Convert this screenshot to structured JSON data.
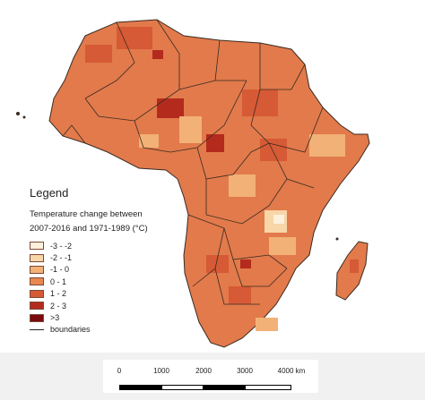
{
  "legend": {
    "title": "Legend",
    "subtitle_line1": "Temperature change between",
    "subtitle_line2": "2007-2016 and 1971-1989 (°C)",
    "classes": [
      {
        "label": "-3 - -2",
        "color": "#fdf0dc"
      },
      {
        "label": "-2 - -1",
        "color": "#f8d6a8"
      },
      {
        "label": "-1 - 0",
        "color": "#f2b176"
      },
      {
        "label": "0 - 1",
        "color": "#e8874f"
      },
      {
        "label": "1 - 2",
        "color": "#d65a35"
      },
      {
        "label": "2 - 3",
        "color": "#b42a1d"
      },
      {
        "label": ">3",
        "color": "#7a0a0d"
      }
    ],
    "boundaries_label": "boundaries"
  },
  "scalebar": {
    "ticks": [
      "0",
      "1000",
      "2000",
      "3000",
      "4000 km"
    ]
  },
  "colors": {
    "land": "#e27a4b",
    "warm": "#d65a35",
    "hot": "#b42a1d",
    "cool": "#f2b176",
    "boundary": "#3a2b22"
  }
}
